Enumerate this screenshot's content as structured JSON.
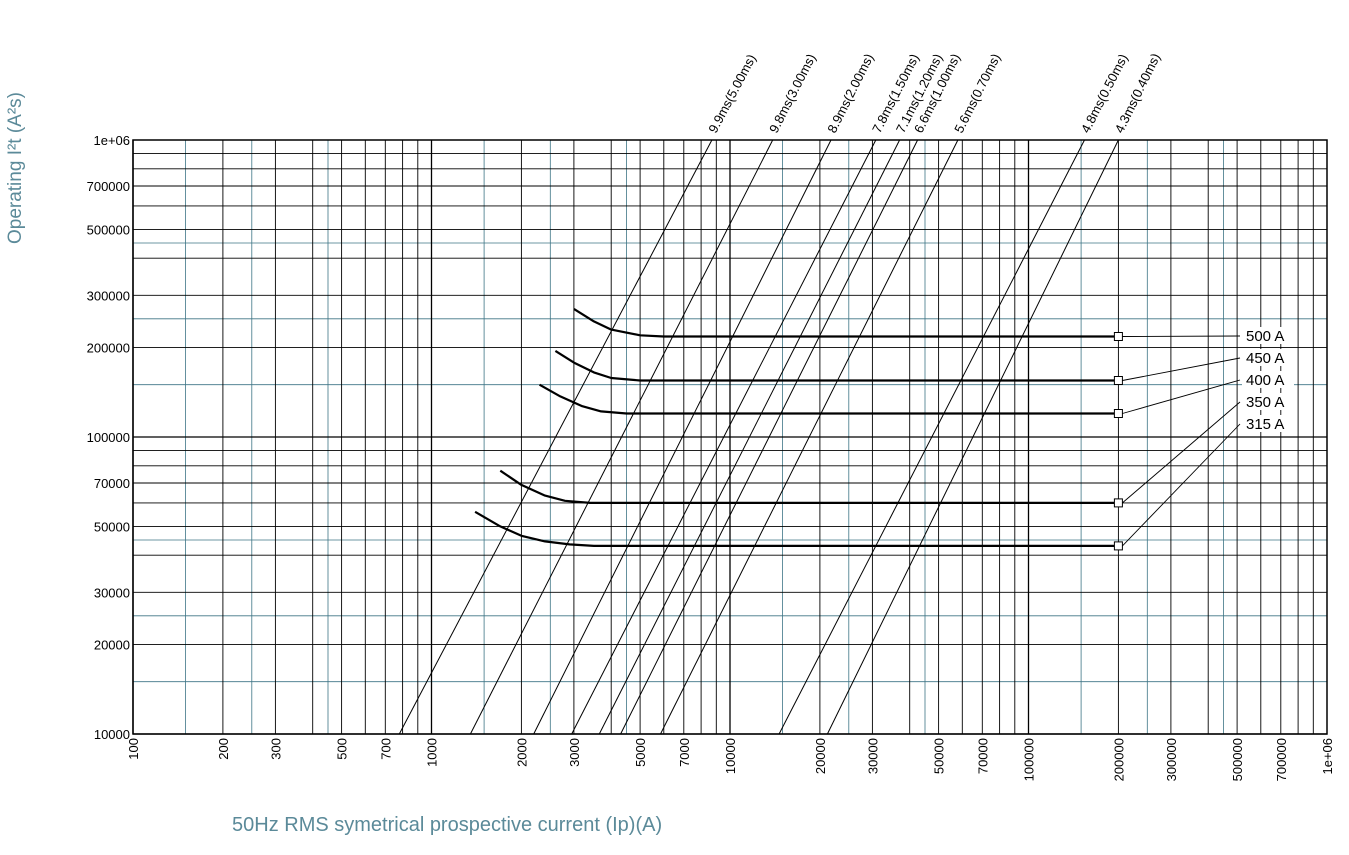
{
  "chart_data": {
    "type": "line",
    "xlabel": "50Hz RMS symetrical prospective current (Ip)(A)",
    "ylabel": "Operating I²t (A²s)",
    "xscale": "log",
    "yscale": "log",
    "xlim": [
      100,
      1000000
    ],
    "ylim": [
      10000,
      1000000
    ],
    "grid": true,
    "x_ticks": [
      "100",
      "200",
      "300",
      "500",
      "700",
      "1000",
      "2000",
      "3000",
      "5000",
      "7000",
      "10000",
      "20000",
      "30000",
      "50000",
      "70000",
      "100000",
      "200000",
      "300000",
      "500000",
      "700000",
      "1e+06"
    ],
    "y_ticks": [
      "10000",
      "20000",
      "30000",
      "50000",
      "70000",
      "100000",
      "200000",
      "300000",
      "500000",
      "700000",
      "1e+06"
    ],
    "series": [
      {
        "name": "500 A",
        "x": [
          3000,
          3500,
          4000,
          5000,
          6000,
          8000,
          10000,
          20000,
          50000,
          100000,
          200000
        ],
        "y": [
          270000,
          245000,
          230000,
          220000,
          218000,
          218000,
          218000,
          218000,
          218000,
          218000,
          218000
        ]
      },
      {
        "name": "450 A",
        "x": [
          2600,
          3000,
          3500,
          4000,
          5000,
          6000,
          10000,
          20000,
          50000,
          100000,
          200000
        ],
        "y": [
          195000,
          178000,
          165000,
          158000,
          155000,
          155000,
          155000,
          155000,
          155000,
          155000,
          155000
        ]
      },
      {
        "name": "400 A",
        "x": [
          2300,
          2700,
          3200,
          3700,
          4500,
          6000,
          10000,
          20000,
          50000,
          100000,
          200000
        ],
        "y": [
          150000,
          137000,
          127000,
          122000,
          120000,
          120000,
          120000,
          120000,
          120000,
          120000,
          120000
        ]
      },
      {
        "name": "350 A",
        "x": [
          1700,
          2000,
          2400,
          2800,
          3400,
          4500,
          10000,
          20000,
          50000,
          100000,
          200000
        ],
        "y": [
          77000,
          69000,
          63500,
          61000,
          60000,
          60000,
          60000,
          60000,
          60000,
          60000,
          60000
        ]
      },
      {
        "name": "315 A",
        "x": [
          1400,
          1700,
          2000,
          2400,
          2900,
          3500,
          10000,
          20000,
          50000,
          100000,
          200000
        ],
        "y": [
          56000,
          50000,
          46500,
          44500,
          43500,
          43000,
          43000,
          43000,
          43000,
          43000,
          43000
        ]
      }
    ],
    "time_lines": [
      {
        "label": "9.9ms(5.00ms)",
        "x": [
          780,
          8700
        ],
        "y": [
          10000,
          1000000
        ]
      },
      {
        "label": "9.8ms(3.00ms)",
        "x": [
          1350,
          13900
        ],
        "y": [
          10000,
          1000000
        ]
      },
      {
        "label": "8.9ms(2.00ms)",
        "x": [
          2200,
          21800
        ],
        "y": [
          10000,
          1000000
        ]
      },
      {
        "label": "7.8ms(1.50ms)",
        "x": [
          2950,
          30800
        ],
        "y": [
          10000,
          1000000
        ]
      },
      {
        "label": "7.1ms(1.20ms)",
        "x": [
          3650,
          37000
        ],
        "y": [
          10000,
          1000000
        ]
      },
      {
        "label": "6.6ms(1.00ms)",
        "x": [
          4300,
          42500
        ],
        "y": [
          10000,
          1000000
        ]
      },
      {
        "label": "5.6ms(0.70ms)",
        "x": [
          5850,
          58000
        ],
        "y": [
          10000,
          1000000
        ]
      },
      {
        "label": "4.8ms(0.50ms)",
        "x": [
          14600,
          154000
        ],
        "y": [
          10000,
          1000000
        ]
      },
      {
        "label": "4.3ms(0.40ms)",
        "x": [
          21200,
          200000
        ],
        "y": [
          10000,
          1000000
        ]
      }
    ],
    "marker": {
      "shape": "square",
      "x": 200000,
      "y": [
        218000,
        155000,
        120000,
        60000,
        43000
      ]
    },
    "legend": {
      "placement": "right",
      "entries": [
        "500 A",
        "450 A",
        "400 A",
        "350 A",
        "315 A"
      ]
    },
    "colors": {
      "grid_major": "#000000",
      "grid_minor": "#3d7485",
      "curves": "#000000",
      "axis_title": "#5b8a99"
    }
  }
}
